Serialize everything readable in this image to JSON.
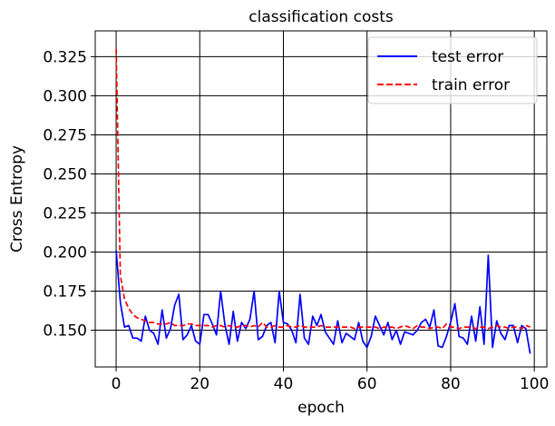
{
  "chart_data": {
    "type": "line",
    "title": "classification costs",
    "xlabel": "epoch",
    "ylabel": "Cross Entropy",
    "xlim": [
      -5,
      103
    ],
    "ylim": [
      0.1265,
      0.3415
    ],
    "xticks": [
      0,
      20,
      40,
      60,
      80,
      100
    ],
    "xtick_labels": [
      "0",
      "20",
      "40",
      "60",
      "80",
      "100"
    ],
    "yticks": [
      0.15,
      0.175,
      0.2,
      0.225,
      0.25,
      0.275,
      0.3,
      0.325
    ],
    "ytick_labels": [
      "0.150",
      "0.175",
      "0.200",
      "0.225",
      "0.250",
      "0.275",
      "0.300",
      "0.325"
    ],
    "grid": true,
    "legend_position": "top-right",
    "series": [
      {
        "name": "test error",
        "color": "#0000ff",
        "style": "solid",
        "x": [
          0,
          1,
          2,
          3,
          4,
          5,
          6,
          7,
          8,
          9,
          10,
          11,
          12,
          13,
          14,
          15,
          16,
          17,
          18,
          19,
          20,
          21,
          22,
          23,
          24,
          25,
          26,
          27,
          28,
          29,
          30,
          31,
          32,
          33,
          34,
          35,
          36,
          37,
          38,
          39,
          40,
          41,
          42,
          43,
          44,
          45,
          46,
          47,
          48,
          49,
          50,
          51,
          52,
          53,
          54,
          55,
          56,
          57,
          58,
          59,
          60,
          61,
          62,
          63,
          64,
          65,
          66,
          67,
          68,
          69,
          70,
          71,
          72,
          73,
          74,
          75,
          76,
          77,
          78,
          79,
          80,
          81,
          82,
          83,
          84,
          85,
          86,
          87,
          88,
          89,
          90,
          91,
          92,
          93,
          94,
          95,
          96,
          97,
          98,
          99
        ],
        "values": [
          0.201,
          0.168,
          0.152,
          0.153,
          0.145,
          0.145,
          0.143,
          0.159,
          0.15,
          0.148,
          0.141,
          0.163,
          0.145,
          0.151,
          0.166,
          0.173,
          0.144,
          0.147,
          0.153,
          0.143,
          0.141,
          0.16,
          0.16,
          0.154,
          0.147,
          0.175,
          0.154,
          0.141,
          0.162,
          0.143,
          0.155,
          0.151,
          0.157,
          0.175,
          0.144,
          0.146,
          0.153,
          0.155,
          0.142,
          0.175,
          0.155,
          0.154,
          0.15,
          0.142,
          0.173,
          0.145,
          0.141,
          0.159,
          0.153,
          0.16,
          0.149,
          0.145,
          0.141,
          0.156,
          0.142,
          0.148,
          0.146,
          0.144,
          0.155,
          0.143,
          0.139,
          0.146,
          0.159,
          0.153,
          0.147,
          0.155,
          0.144,
          0.15,
          0.141,
          0.149,
          0.148,
          0.147,
          0.15,
          0.155,
          0.157,
          0.152,
          0.163,
          0.14,
          0.139,
          0.146,
          0.155,
          0.167,
          0.146,
          0.145,
          0.141,
          0.159,
          0.143,
          0.165,
          0.141,
          0.198,
          0.139,
          0.156,
          0.148,
          0.144,
          0.153,
          0.153,
          0.142,
          0.153,
          0.151,
          0.135
        ]
      },
      {
        "name": "train error",
        "color": "#ff0000",
        "style": "dashed",
        "x": [
          0,
          1,
          2,
          3,
          4,
          5,
          6,
          7,
          8,
          9,
          10,
          11,
          12,
          13,
          14,
          15,
          16,
          17,
          18,
          19,
          20,
          21,
          22,
          23,
          24,
          25,
          26,
          27,
          28,
          29,
          30,
          31,
          32,
          33,
          34,
          35,
          36,
          37,
          38,
          39,
          40,
          41,
          42,
          43,
          44,
          45,
          46,
          47,
          48,
          49,
          50,
          51,
          52,
          53,
          54,
          55,
          56,
          57,
          58,
          59,
          60,
          61,
          62,
          63,
          64,
          65,
          66,
          67,
          68,
          69,
          70,
          71,
          72,
          73,
          74,
          75,
          76,
          77,
          78,
          79,
          80,
          81,
          82,
          83,
          84,
          85,
          86,
          87,
          88,
          89,
          90,
          91,
          92,
          93,
          94,
          95,
          96,
          97,
          98,
          99
        ],
        "values": [
          0.33,
          0.185,
          0.17,
          0.164,
          0.16,
          0.158,
          0.157,
          0.156,
          0.155,
          0.155,
          0.154,
          0.154,
          0.154,
          0.155,
          0.153,
          0.153,
          0.153,
          0.154,
          0.154,
          0.153,
          0.153,
          0.153,
          0.153,
          0.152,
          0.153,
          0.153,
          0.152,
          0.153,
          0.152,
          0.152,
          0.153,
          0.153,
          0.152,
          0.153,
          0.152,
          0.155,
          0.152,
          0.152,
          0.153,
          0.152,
          0.152,
          0.153,
          0.152,
          0.152,
          0.153,
          0.152,
          0.152,
          0.152,
          0.152,
          0.153,
          0.152,
          0.152,
          0.152,
          0.152,
          0.152,
          0.152,
          0.152,
          0.151,
          0.152,
          0.152,
          0.152,
          0.152,
          0.152,
          0.151,
          0.152,
          0.152,
          0.152,
          0.151,
          0.152,
          0.153,
          0.152,
          0.151,
          0.153,
          0.152,
          0.152,
          0.151,
          0.152,
          0.152,
          0.151,
          0.154,
          0.152,
          0.152,
          0.151,
          0.152,
          0.152,
          0.152,
          0.151,
          0.152,
          0.152,
          0.151,
          0.152,
          0.153,
          0.152,
          0.152,
          0.151,
          0.152,
          0.152,
          0.151,
          0.153,
          0.152
        ]
      }
    ]
  }
}
